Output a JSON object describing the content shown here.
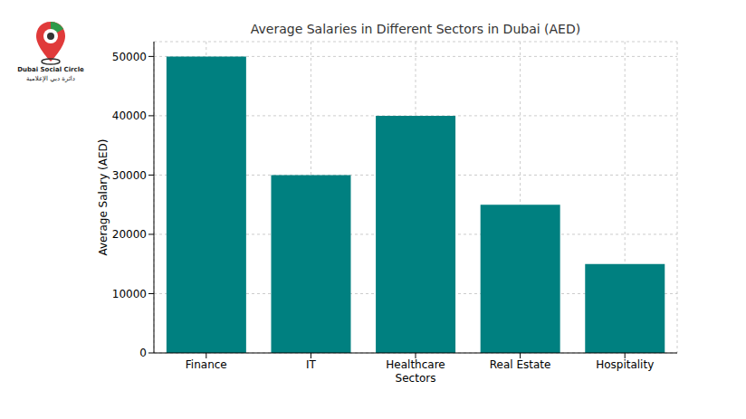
{
  "chart_data": {
    "type": "bar",
    "title": "Average Salaries in Different Sectors in Dubai (AED)",
    "x_label": "Sectors",
    "y_label": "Average Salary (AED)",
    "categories": [
      "Finance",
      "IT",
      "Healthcare",
      "Real Estate",
      "Hospitality"
    ],
    "values": [
      50000,
      30000,
      40000,
      25000,
      15000
    ],
    "color": "#008080",
    "ylim": [
      0,
      52500
    ],
    "yticks": [
      0,
      10000,
      20000,
      30000,
      40000,
      50000
    ],
    "grid": true,
    "annotations": [
      "Dubai Social Circle",
      "دائرة دبي الإعلامية"
    ]
  }
}
